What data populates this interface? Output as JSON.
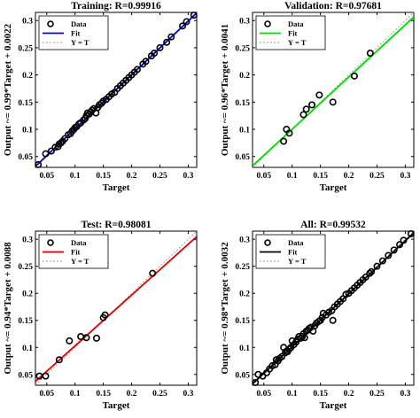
{
  "chart_data": [
    {
      "type": "scatter",
      "title": "Training: R=0.99916",
      "xlabel": "Target",
      "ylabel": "Output ~= 0.99*Target + 0.0022",
      "xlim": [
        0.03,
        0.315
      ],
      "ylim": [
        0.03,
        0.315
      ],
      "xticks": [
        "0.05",
        "0.1",
        "0.15",
        "0.2",
        "0.25",
        "0.3"
      ],
      "yticks": [
        "0.05",
        "0.1",
        "0.15",
        "0.2",
        "0.25",
        "0.3"
      ],
      "legend": {
        "position": "top-left",
        "entries": [
          "Data",
          "Fit",
          "Y = T"
        ]
      },
      "fit": {
        "slope": 0.99,
        "intercept": 0.0022,
        "color": "#0000cc"
      },
      "series": [
        {
          "name": "Data",
          "x": [
            0.035,
            0.048,
            0.058,
            0.065,
            0.07,
            0.072,
            0.075,
            0.078,
            0.082,
            0.088,
            0.092,
            0.095,
            0.098,
            0.1,
            0.103,
            0.107,
            0.11,
            0.115,
            0.118,
            0.12,
            0.122,
            0.125,
            0.128,
            0.13,
            0.133,
            0.137,
            0.14,
            0.143,
            0.147,
            0.15,
            0.155,
            0.16,
            0.165,
            0.17,
            0.175,
            0.18,
            0.185,
            0.19,
            0.195,
            0.2,
            0.205,
            0.21,
            0.22,
            0.225,
            0.235,
            0.24,
            0.25,
            0.262,
            0.27,
            0.29,
            0.297,
            0.31
          ],
          "y": [
            0.035,
            0.055,
            0.06,
            0.067,
            0.068,
            0.073,
            0.075,
            0.078,
            0.083,
            0.09,
            0.092,
            0.097,
            0.1,
            0.103,
            0.105,
            0.11,
            0.112,
            0.117,
            0.12,
            0.125,
            0.13,
            0.128,
            0.132,
            0.135,
            0.138,
            0.13,
            0.14,
            0.145,
            0.148,
            0.152,
            0.155,
            0.16,
            0.165,
            0.168,
            0.175,
            0.18,
            0.185,
            0.19,
            0.195,
            0.2,
            0.205,
            0.21,
            0.22,
            0.225,
            0.235,
            0.24,
            0.25,
            0.26,
            0.27,
            0.29,
            0.298,
            0.31
          ]
        }
      ]
    },
    {
      "type": "scatter",
      "title": "Validation: R=0.97681",
      "xlabel": "Target",
      "ylabel": "Output ~= 0.96*Target + 0.0041",
      "xlim": [
        0.03,
        0.315
      ],
      "ylim": [
        0.03,
        0.315
      ],
      "xticks": [
        "0.05",
        "0.1",
        "0.15",
        "0.2",
        "0.25",
        "0.3"
      ],
      "yticks": [
        "0.05",
        "0.1",
        "0.15",
        "0.2",
        "0.25",
        "0.3"
      ],
      "legend": {
        "position": "top-left",
        "entries": [
          "Data",
          "Fit",
          "Y = T"
        ]
      },
      "fit": {
        "slope": 0.96,
        "intercept": 0.0041,
        "color": "#00dd00"
      },
      "series": [
        {
          "name": "Data",
          "x": [
            0.085,
            0.09,
            0.095,
            0.12,
            0.125,
            0.135,
            0.148,
            0.172,
            0.21,
            0.238
          ],
          "y": [
            0.078,
            0.1,
            0.093,
            0.127,
            0.137,
            0.145,
            0.163,
            0.15,
            0.198,
            0.24
          ]
        }
      ]
    },
    {
      "type": "scatter",
      "title": "Test: R=0.98081",
      "xlabel": "Target",
      "ylabel": "Output ~= 0.94*Target + 0.0088",
      "xlim": [
        0.03,
        0.315
      ],
      "ylim": [
        0.03,
        0.315
      ],
      "xticks": [
        "0.05",
        "0.1",
        "0.15",
        "0.2",
        "0.25",
        "0.3"
      ],
      "yticks": [
        "0.05",
        "0.1",
        "0.15",
        "0.2",
        "0.25",
        "0.3"
      ],
      "legend": {
        "position": "top-left",
        "entries": [
          "Data",
          "Fit",
          "Y = T"
        ]
      },
      "fit": {
        "slope": 0.94,
        "intercept": 0.0088,
        "color": "#dd0000"
      },
      "series": [
        {
          "name": "Data",
          "x": [
            0.037,
            0.048,
            0.072,
            0.09,
            0.11,
            0.12,
            0.138,
            0.15,
            0.153,
            0.237
          ],
          "y": [
            0.047,
            0.047,
            0.077,
            0.112,
            0.12,
            0.118,
            0.117,
            0.155,
            0.16,
            0.237
          ]
        }
      ]
    },
    {
      "type": "scatter",
      "title": "All: R=0.99532",
      "xlabel": "Target",
      "ylabel": "Output ~= 0.98*Target + 0.0032",
      "xlim": [
        0.03,
        0.315
      ],
      "ylim": [
        0.03,
        0.315
      ],
      "xticks": [
        "0.05",
        "0.1",
        "0.15",
        "0.2",
        "0.25",
        "0.3"
      ],
      "yticks": [
        "0.05",
        "0.1",
        "0.15",
        "0.2",
        "0.25",
        "0.3"
      ],
      "legend": {
        "position": "top-left",
        "entries": [
          "Data",
          "Fit",
          "Y = T"
        ]
      },
      "fit": {
        "slope": 0.98,
        "intercept": 0.0032,
        "color": "#000000"
      },
      "series": [
        {
          "name": "Data",
          "x": [
            0.035,
            0.04,
            0.048,
            0.055,
            0.06,
            0.065,
            0.07,
            0.072,
            0.075,
            0.078,
            0.082,
            0.085,
            0.088,
            0.09,
            0.092,
            0.095,
            0.098,
            0.1,
            0.103,
            0.107,
            0.11,
            0.112,
            0.115,
            0.118,
            0.12,
            0.122,
            0.125,
            0.128,
            0.13,
            0.133,
            0.137,
            0.14,
            0.143,
            0.147,
            0.15,
            0.153,
            0.155,
            0.16,
            0.165,
            0.17,
            0.172,
            0.175,
            0.18,
            0.185,
            0.19,
            0.195,
            0.2,
            0.205,
            0.21,
            0.215,
            0.22,
            0.225,
            0.23,
            0.237,
            0.24,
            0.25,
            0.26,
            0.27,
            0.28,
            0.29,
            0.297,
            0.31
          ],
          "y": [
            0.035,
            0.05,
            0.047,
            0.053,
            0.06,
            0.066,
            0.068,
            0.077,
            0.075,
            0.08,
            0.083,
            0.1,
            0.09,
            0.093,
            0.092,
            0.097,
            0.1,
            0.112,
            0.105,
            0.11,
            0.115,
            0.12,
            0.117,
            0.12,
            0.125,
            0.118,
            0.13,
            0.132,
            0.135,
            0.137,
            0.13,
            0.14,
            0.145,
            0.148,
            0.15,
            0.155,
            0.163,
            0.16,
            0.165,
            0.168,
            0.15,
            0.175,
            0.18,
            0.185,
            0.19,
            0.198,
            0.2,
            0.205,
            0.21,
            0.215,
            0.22,
            0.225,
            0.23,
            0.237,
            0.24,
            0.25,
            0.26,
            0.27,
            0.28,
            0.29,
            0.298,
            0.31
          ]
        }
      ]
    }
  ]
}
